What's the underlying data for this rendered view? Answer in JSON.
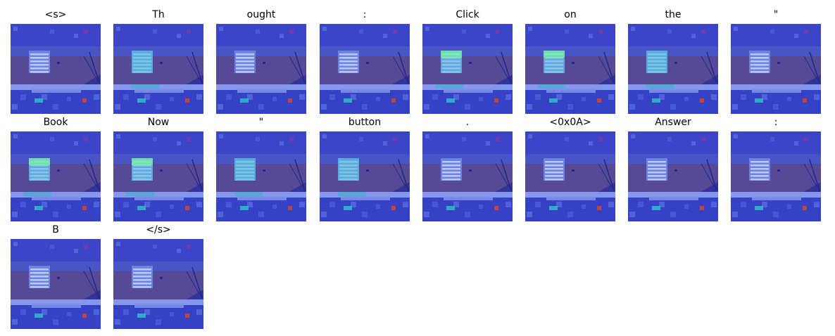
{
  "panels": [
    {
      "token": "<s>",
      "focus": "none"
    },
    {
      "token": "Th",
      "focus": "dialog"
    },
    {
      "token": "ought",
      "focus": "none"
    },
    {
      "token": ":",
      "focus": "none"
    },
    {
      "token": "Click",
      "focus": "dialog-top"
    },
    {
      "token": "on",
      "focus": "dialog-top"
    },
    {
      "token": "the",
      "focus": "dialog"
    },
    {
      "token": "\"",
      "focus": "none"
    },
    {
      "token": "Book",
      "focus": "dialog-top"
    },
    {
      "token": "Now",
      "focus": "dialog-top"
    },
    {
      "token": "\"",
      "focus": "dialog"
    },
    {
      "token": "button",
      "focus": "dialog"
    },
    {
      "token": ".",
      "focus": "none"
    },
    {
      "token": "<0x0A>",
      "focus": "none"
    },
    {
      "token": "Answer",
      "focus": "none"
    },
    {
      "token": ":",
      "focus": "none"
    },
    {
      "token": "B",
      "focus": "none"
    },
    {
      "token": "</s>",
      "focus": "none"
    }
  ],
  "colors": {
    "sky": "#3c45c8",
    "heat_low": "#3a4ad0",
    "heat_mid": "#2fb7c9",
    "heat_high": "#6ef0a0",
    "heat_hot": "#c8462f",
    "sea": "#5a4a8c",
    "dialog": "#6f86e6",
    "deck": "#8a9cf2",
    "ground": "#3542c6",
    "text": "#000000"
  }
}
